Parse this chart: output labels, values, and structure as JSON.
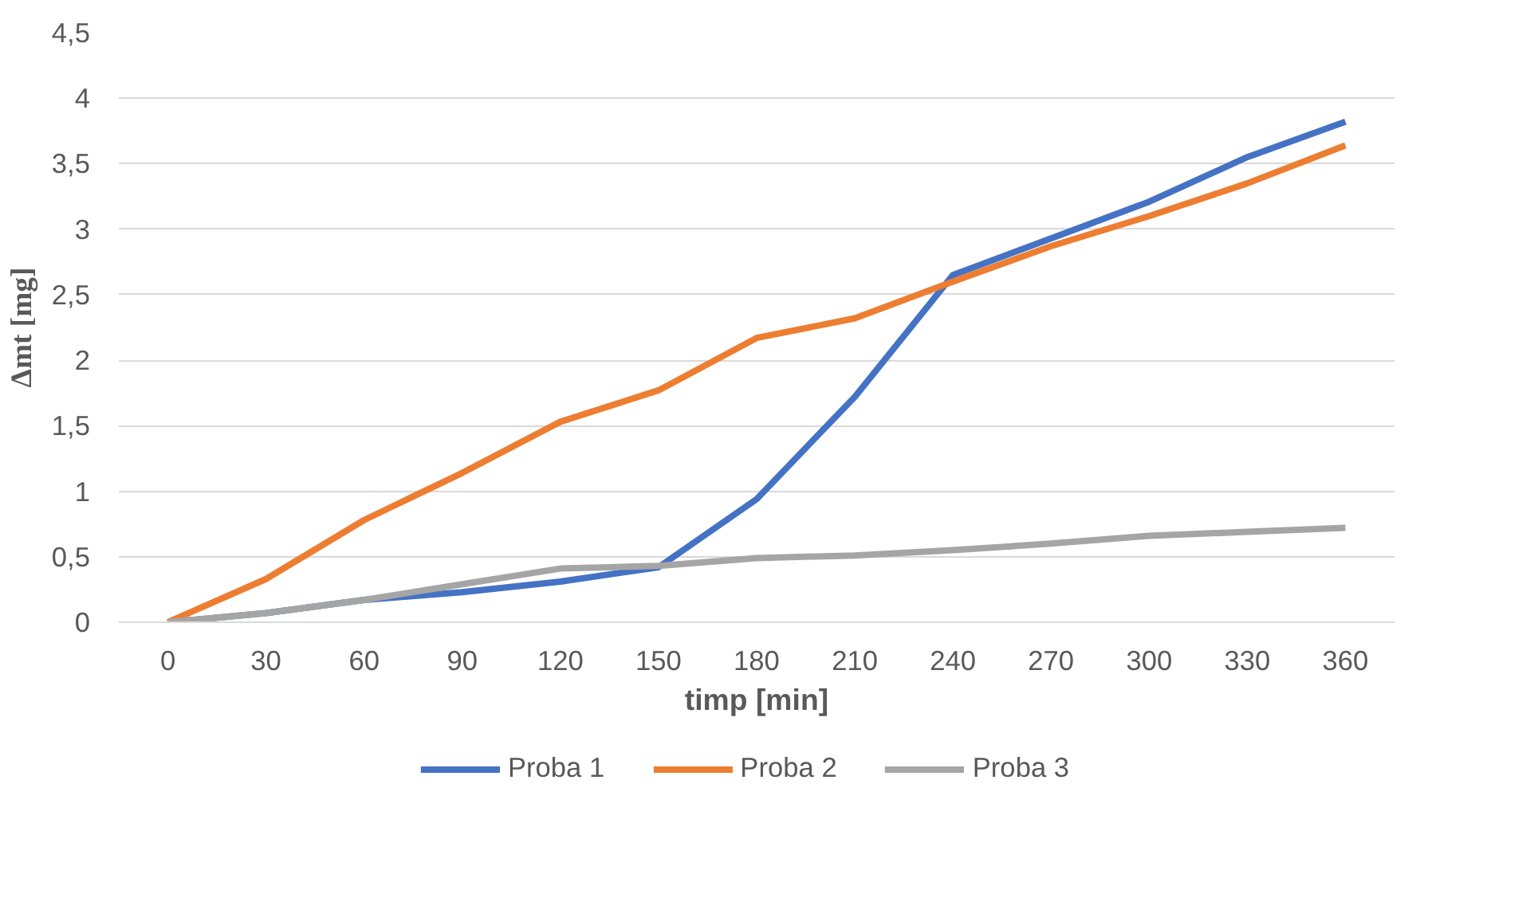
{
  "chart_data": {
    "type": "line",
    "xlabel": "timp [min]",
    "ylabel": "Δmt [mg]",
    "categories": [
      "0",
      "30",
      "60",
      "90",
      "120",
      "150",
      "180",
      "210",
      "240",
      "270",
      "300",
      "330",
      "360"
    ],
    "series": [
      {
        "name": "Proba 1",
        "color": "#4472c4",
        "values": [
          0,
          0.07,
          0.17,
          0.23,
          0.31,
          0.42,
          0.94,
          1.72,
          2.65,
          2.93,
          3.21,
          3.55,
          3.82
        ]
      },
      {
        "name": "Proba 2",
        "color": "#ed7d31",
        "values": [
          0,
          0.33,
          0.78,
          1.14,
          1.53,
          1.77,
          2.17,
          2.32,
          2.6,
          2.87,
          3.1,
          3.35,
          3.64
        ]
      },
      {
        "name": "Proba 3",
        "color": "#a5a5a5",
        "values": [
          0,
          0.07,
          0.17,
          0.29,
          0.41,
          0.43,
          0.49,
          0.51,
          0.55,
          0.6,
          0.66,
          0.69,
          0.72
        ]
      }
    ],
    "ylim": [
      0,
      4.5
    ],
    "yticks": [
      0,
      {
        "value": 0.5,
        "label": "0,5"
      },
      1,
      {
        "value": 1.5,
        "label": "1,5"
      },
      2,
      {
        "value": 2.5,
        "label": "2,5"
      },
      3,
      {
        "value": 3.5,
        "label": "3,5"
      },
      4,
      {
        "value": 4.5,
        "label": "4,5"
      }
    ],
    "grid": "y",
    "legend": "bottom",
    "line_style": "solid",
    "marker": "none"
  }
}
